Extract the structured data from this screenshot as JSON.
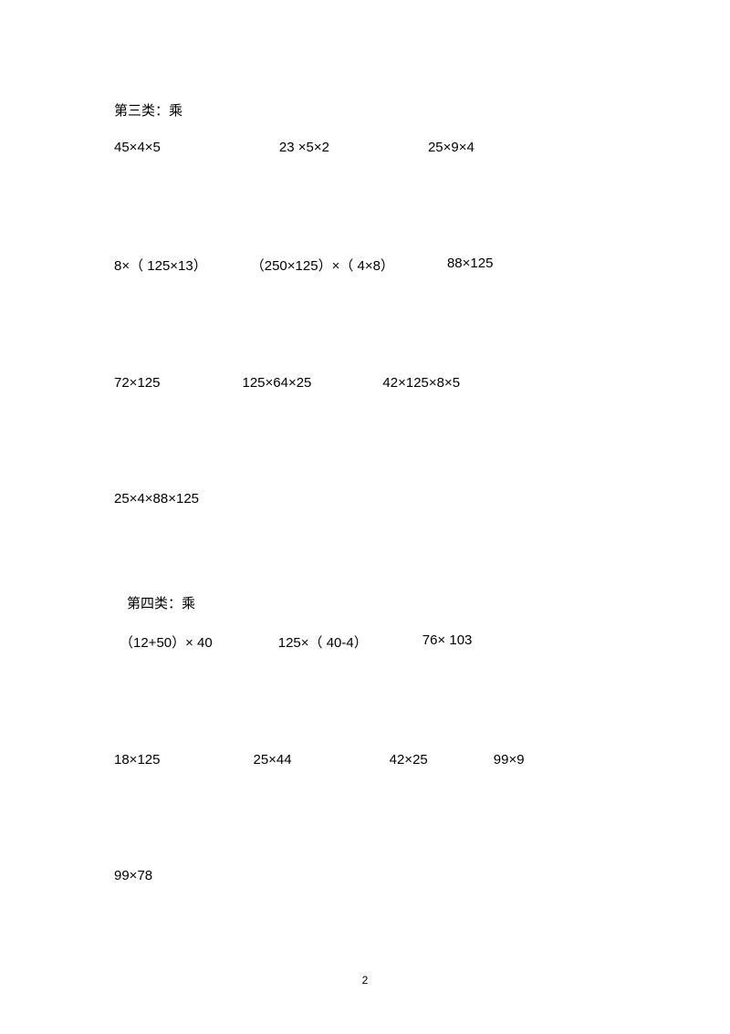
{
  "section3": {
    "heading": "第三类：乘",
    "rows": [
      [
        {
          "text": "45×4×5",
          "gap": 130
        },
        {
          "text": "23 ×5×2",
          "gap": 108
        },
        {
          "text": "25×9×4",
          "gap": 0
        }
      ],
      [
        {
          "text": "8×（ 125×13）",
          "gap": 48
        },
        {
          "text": "（250×125）×（ 4×8）",
          "gap": 58
        },
        {
          "text": "88×125",
          "gap": 0
        }
      ],
      [
        {
          "text": "72×125",
          "gap": 90
        },
        {
          "text": "125×64×25",
          "gap": 78
        },
        {
          "text": "42×125×8×5",
          "gap": 0
        }
      ],
      [
        {
          "text": "25×4×88×125",
          "gap": 0
        }
      ]
    ]
  },
  "section4": {
    "heading": "第四类：乘",
    "rows": [
      [
        {
          "text": "（12+50）× 40",
          "gap": 72
        },
        {
          "text": "125×（ 40-4）",
          "gap": 60
        },
        {
          "text": "76× 103",
          "gap": 0
        }
      ],
      [
        {
          "text": "18×125",
          "gap": 102
        },
        {
          "text": "25×44",
          "gap": 107
        },
        {
          "text": "42×25",
          "gap": 72
        },
        {
          "text": "99×9",
          "gap": 0
        }
      ],
      [
        {
          "text": "99×78",
          "gap": 0
        }
      ]
    ]
  },
  "pageNumber": "2",
  "heading4_indent": 14,
  "row4_0_indent": 6
}
